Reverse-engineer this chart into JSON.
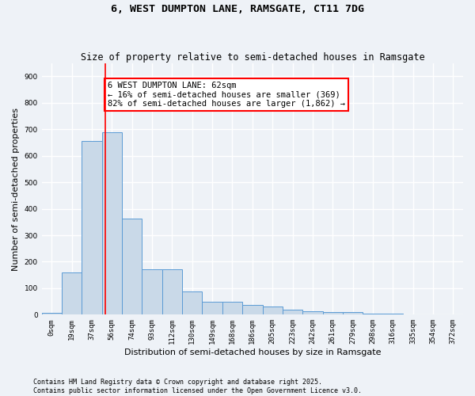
{
  "title": "6, WEST DUMPTON LANE, RAMSGATE, CT11 7DG",
  "subtitle": "Size of property relative to semi-detached houses in Ramsgate",
  "xlabel": "Distribution of semi-detached houses by size in Ramsgate",
  "ylabel": "Number of semi-detached properties",
  "bin_labels": [
    "0sqm",
    "19sqm",
    "37sqm",
    "56sqm",
    "74sqm",
    "93sqm",
    "112sqm",
    "130sqm",
    "149sqm",
    "168sqm",
    "186sqm",
    "205sqm",
    "223sqm",
    "242sqm",
    "261sqm",
    "279sqm",
    "298sqm",
    "316sqm",
    "335sqm",
    "354sqm",
    "372sqm"
  ],
  "bar_values": [
    8,
    160,
    655,
    690,
    362,
    170,
    170,
    88,
    48,
    48,
    37,
    30,
    20,
    13,
    11,
    10,
    5,
    3,
    2,
    1,
    0
  ],
  "bar_color": "#c9d9e8",
  "bar_edge_color": "#5b9bd5",
  "vline_x": 2.68,
  "vline_color": "red",
  "annotation_text": "6 WEST DUMPTON LANE: 62sqm\n← 16% of semi-detached houses are smaller (369)\n82% of semi-detached houses are larger (1,862) →",
  "annotation_box_color": "white",
  "annotation_box_edge_color": "red",
  "ylim": [
    0,
    950
  ],
  "yticks": [
    0,
    100,
    200,
    300,
    400,
    500,
    600,
    700,
    800,
    900
  ],
  "footer_text": "Contains HM Land Registry data © Crown copyright and database right 2025.\nContains public sector information licensed under the Open Government Licence v3.0.",
  "bg_color": "#eef2f7",
  "plot_bg_color": "#eef2f7",
  "grid_color": "white",
  "title_fontsize": 9.5,
  "subtitle_fontsize": 8.5,
  "axis_label_fontsize": 8,
  "tick_fontsize": 6.5,
  "annotation_fontsize": 7.5,
  "footer_fontsize": 6
}
